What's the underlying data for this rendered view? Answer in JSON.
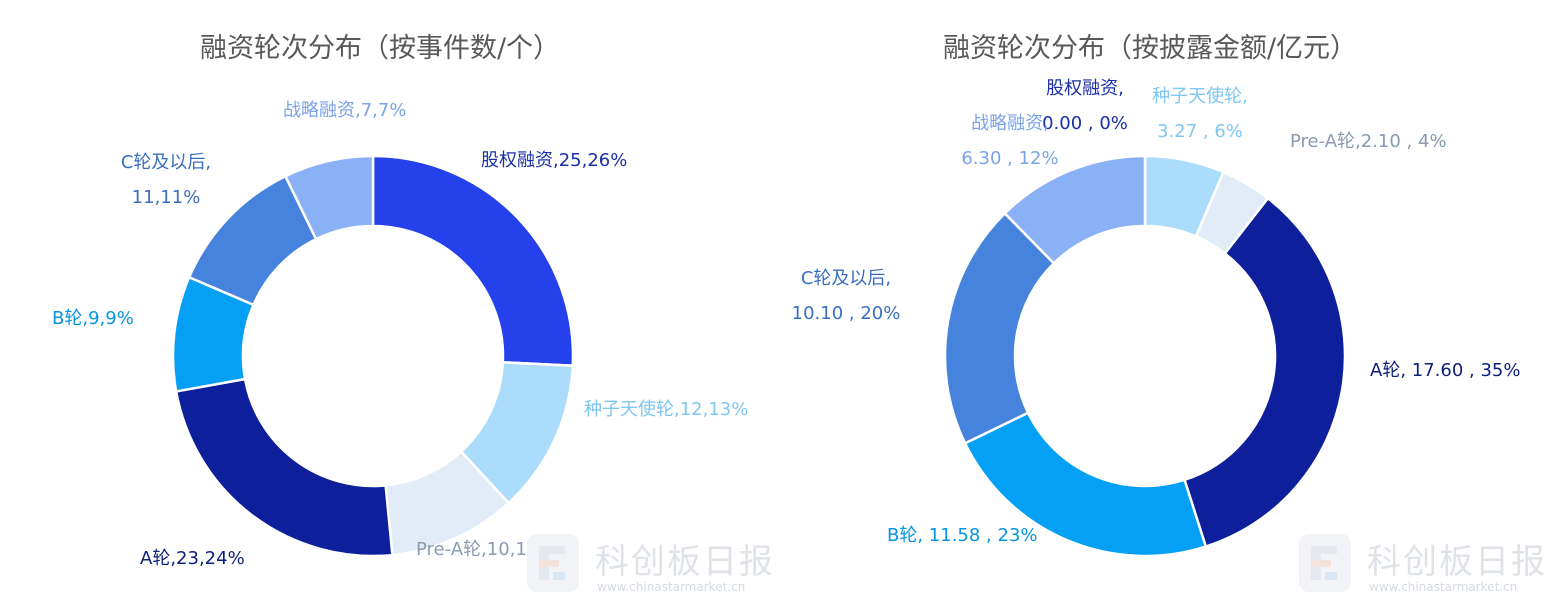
{
  "watermark": {
    "name": "科创板日报",
    "url": "www.chinastarmarket.cn"
  },
  "chart_data": [
    {
      "type": "pie",
      "title": "融资轮次分布（按事件数/个）",
      "donut": true,
      "series": [
        {
          "name": "股权融资",
          "value": 25,
          "percent": "26%",
          "value_text": "25",
          "color": "#2541ec"
        },
        {
          "name": "种子天使轮",
          "value": 12,
          "percent": "13%",
          "value_text": "12",
          "color": "#abdcfc"
        },
        {
          "name": "Pre-A轮",
          "value": 10,
          "percent": "10%",
          "value_text": "10",
          "color": "#e2ecf9"
        },
        {
          "name": "A轮",
          "value": 23,
          "percent": "24%",
          "value_text": "23",
          "color": "#0d1f9a"
        },
        {
          "name": "B轮",
          "value": 9,
          "percent": "9%",
          "value_text": "9",
          "color": "#04a0f6"
        },
        {
          "name": "C轮及以后",
          "value": 11,
          "percent": "11%",
          "value_text": "11",
          "color": "#4583dd"
        },
        {
          "name": "战略融资",
          "value": 7,
          "percent": "7%",
          "value_text": "7",
          "color": "#8ab0f5"
        }
      ],
      "label_colors": {
        "股权融资": "#1a2fa8",
        "种子天使轮": "#7fc6f2",
        "Pre-A轮": "#8a9bb0",
        "A轮": "#0d1f7a",
        "B轮": "#0596e0",
        "C轮及以后": "#3a6fc0",
        "战略融资": "#7aa3e8"
      },
      "labels": {
        "股权融资": [
          "股权融资,25,26%"
        ],
        "种子天使轮": [
          "种子天使轮,12,13%"
        ],
        "Pre-A轮": [
          "Pre-A轮,10,10%"
        ],
        "A轮": [
          "A轮,23,24%"
        ],
        "B轮": [
          "B轮,9,9%"
        ],
        "C轮及以后": [
          "C轮及以后,",
          "11,11%"
        ],
        "战略融资": [
          "战略融资,7,7%"
        ]
      }
    },
    {
      "type": "pie",
      "title": "融资轮次分布（按披露金额/亿元）",
      "donut": true,
      "series": [
        {
          "name": "股权融资",
          "value": 0.0,
          "percent": "0%",
          "value_text": "0.00",
          "color": "#2541ec"
        },
        {
          "name": "种子天使轮",
          "value": 3.27,
          "percent": "6%",
          "value_text": "3.27",
          "color": "#abdcfc"
        },
        {
          "name": "Pre-A轮",
          "value": 2.1,
          "percent": "4%",
          "value_text": "2.10",
          "color": "#e2ecf9"
        },
        {
          "name": "A轮",
          "value": 17.6,
          "percent": "35%",
          "value_text": "17.60",
          "color": "#0d1f9a"
        },
        {
          "name": "B轮",
          "value": 11.58,
          "percent": "23%",
          "value_text": "11.58",
          "color": "#04a0f6"
        },
        {
          "name": "C轮及以后",
          "value": 10.1,
          "percent": "20%",
          "value_text": "10.10",
          "color": "#4583dd"
        },
        {
          "name": "战略融资",
          "value": 6.3,
          "percent": "12%",
          "value_text": "6.30",
          "color": "#8ab0f5"
        }
      ],
      "label_colors": {
        "股权融资": "#1a2fa8",
        "种子天使轮": "#7fc6f2",
        "Pre-A轮": "#8a9bb0",
        "A轮": "#0d1f7a",
        "B轮": "#0596e0",
        "C轮及以后": "#3a6fc0",
        "战略融资": "#7aa3e8"
      },
      "labels": {
        "股权融资": [
          "股权融资,",
          "0.00 , 0%"
        ],
        "种子天使轮": [
          "种子天使轮,",
          "3.27 , 6%"
        ],
        "Pre-A轮": [
          "Pre-A轮,2.10 , 4%"
        ],
        "A轮": [
          "A轮, 17.60 , 35%"
        ],
        "B轮": [
          "B轮, 11.58 , 23%"
        ],
        "C轮及以后": [
          "C轮及以后,",
          "10.10 , 20%"
        ],
        "战略融资": [
          "战略融资,",
          "6.30 , 12%"
        ]
      }
    }
  ]
}
